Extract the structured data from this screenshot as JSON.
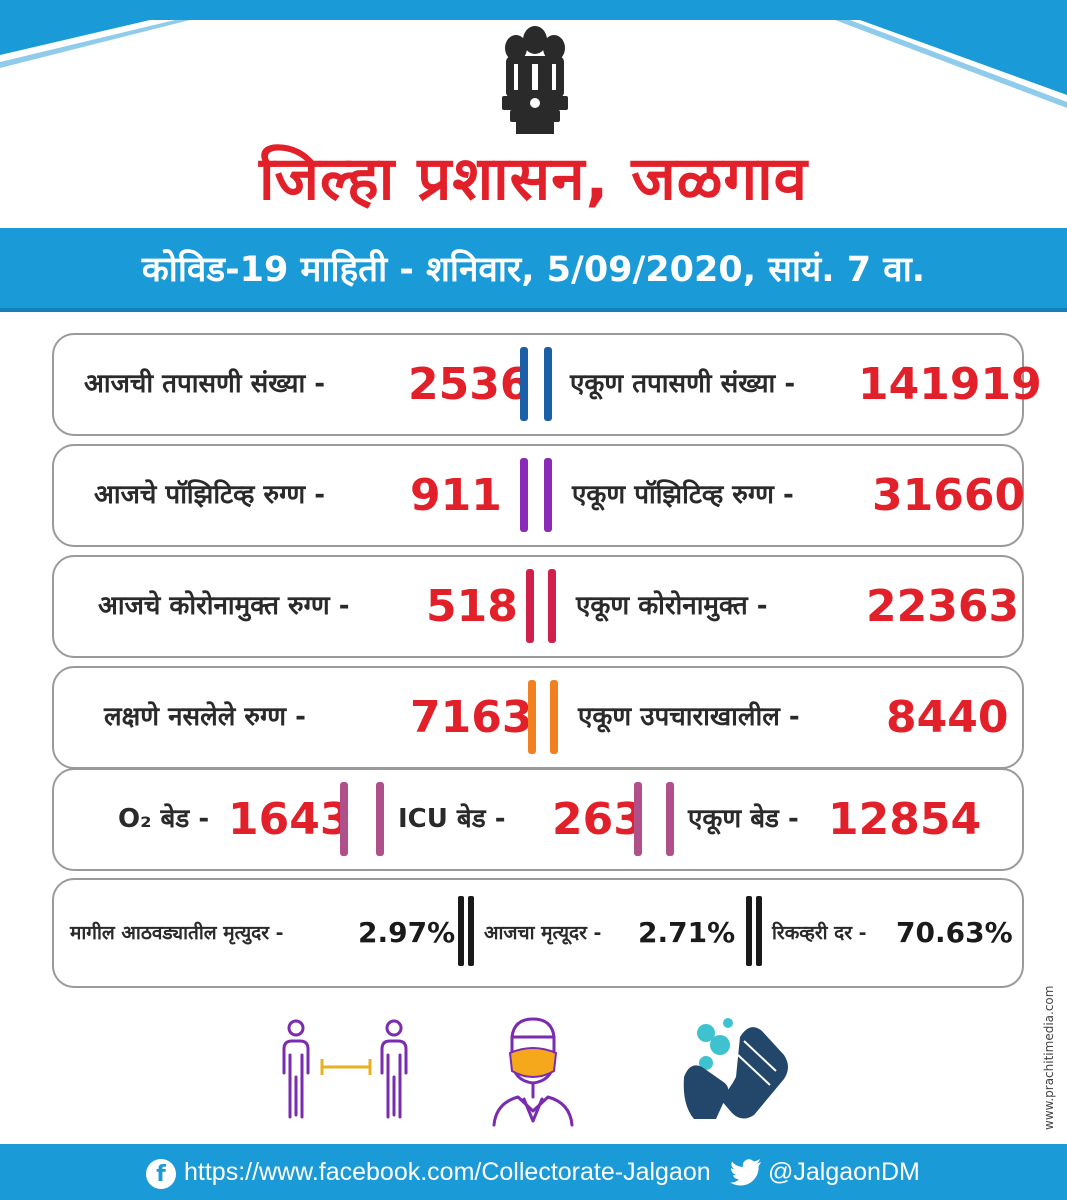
{
  "header": {
    "title": "जिल्हा प्रशासन, जळगाव",
    "banner": "कोविड-19 माहिती - शनिवार, 5/09/2020, सायं. 7 वा."
  },
  "colors": {
    "brand_blue": "#1b9ad8",
    "value_red": "#e2202a",
    "bar_blue": "#1b5fa8",
    "bar_purple": "#8a2bb8",
    "bar_crimson": "#d0204a",
    "bar_orange": "#f08020",
    "bar_mauve": "#b0508a"
  },
  "stats": {
    "row1": {
      "left_label": "आजची तपासणी संख्या  -",
      "left_value": "2536",
      "right_label": "एकूण तपासणी संख्या -",
      "right_value": "141919"
    },
    "row2": {
      "left_label": "आजचे पॉझिटिव्ह रुग्ण -",
      "left_value": "911",
      "right_label": "एकूण पॉझिटिव्ह रुग्ण -",
      "right_value": "31660"
    },
    "row3": {
      "left_label": "आजचे कोरोनामुक्त रुग्ण -",
      "left_value": "518",
      "right_label": "एकूण कोरोनामुक्त -",
      "right_value": "22363"
    },
    "row4": {
      "left_label": "लक्षणे नसलेले रुग्ण -",
      "left_value": "7163",
      "right_label": "एकूण उपचाराखालील -",
      "right_value": "8440"
    },
    "row5": {
      "o2_label": "O₂ बेड -",
      "o2_value": "1643",
      "icu_label": "ICU बेड -",
      "icu_value": "263",
      "total_label": "एकूण  बेड -",
      "total_value": "12854"
    },
    "row6": {
      "week_label": "मागील आठवड्यातील मृत्युदर -",
      "week_value": "2.97%",
      "today_label": "आजचा मृत्यूदर  -",
      "today_value": "2.71%",
      "recovery_label": "रिकव्हरी दर -",
      "recovery_value": "70.63%"
    }
  },
  "icons": [
    "social-distancing-icon",
    "face-mask-icon",
    "hand-wash-icon"
  ],
  "watermark": "www.prachitimedia.com",
  "footer": {
    "facebook_icon": "f",
    "facebook_url": "https://www.facebook.com/Collectorate-Jalgaon",
    "twitter_handle": "@JalgaonDM"
  }
}
